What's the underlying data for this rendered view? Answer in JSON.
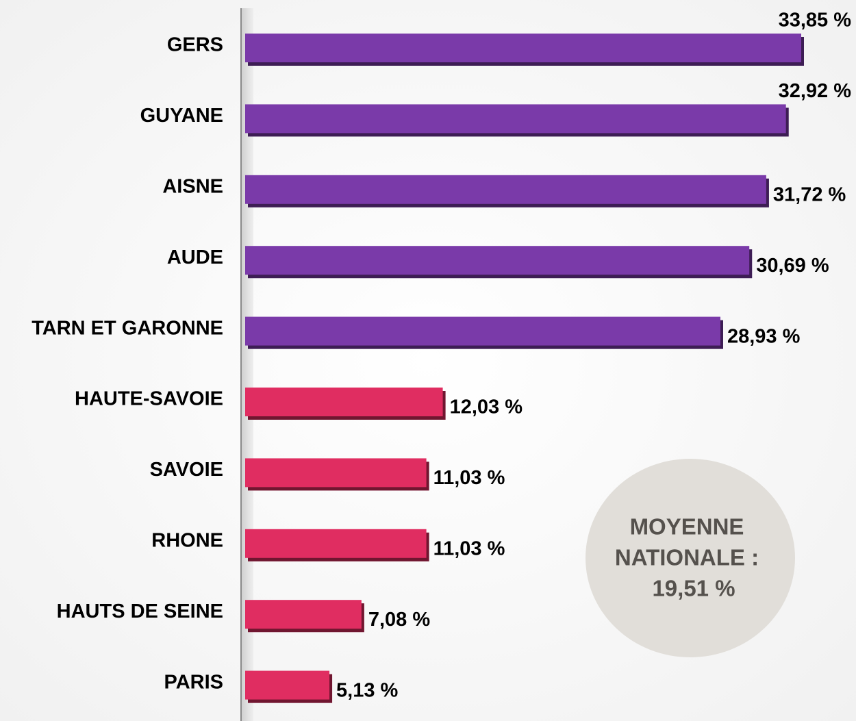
{
  "chart_data": {
    "type": "bar",
    "orientation": "horizontal",
    "categories": [
      "GERS",
      "GUYANE",
      "AISNE",
      "AUDE",
      "TARN ET GARONNE",
      "HAUTE-SAVOIE",
      "SAVOIE",
      "RHONE",
      "HAUTS DE SEINE",
      "PARIS"
    ],
    "values": [
      33.85,
      32.92,
      31.72,
      30.69,
      28.93,
      12.03,
      11.03,
      11.03,
      7.08,
      5.13
    ],
    "value_labels": [
      "33,85 %",
      "32,92 %",
      "31,72 %",
      "30,69 %",
      "28,93 %",
      "12,03 %",
      "11,03 %",
      "11,03 %",
      "7,08 %",
      "5,13 %"
    ],
    "colors": [
      "#7a3aa9",
      "#7a3aa9",
      "#7a3aa9",
      "#7a3aa9",
      "#7a3aa9",
      "#e02d61",
      "#e02d61",
      "#e02d61",
      "#e02d61",
      "#e02d61"
    ],
    "annotation": [
      "MOYENNE",
      "NATIONALE :",
      "19,51 %"
    ]
  }
}
